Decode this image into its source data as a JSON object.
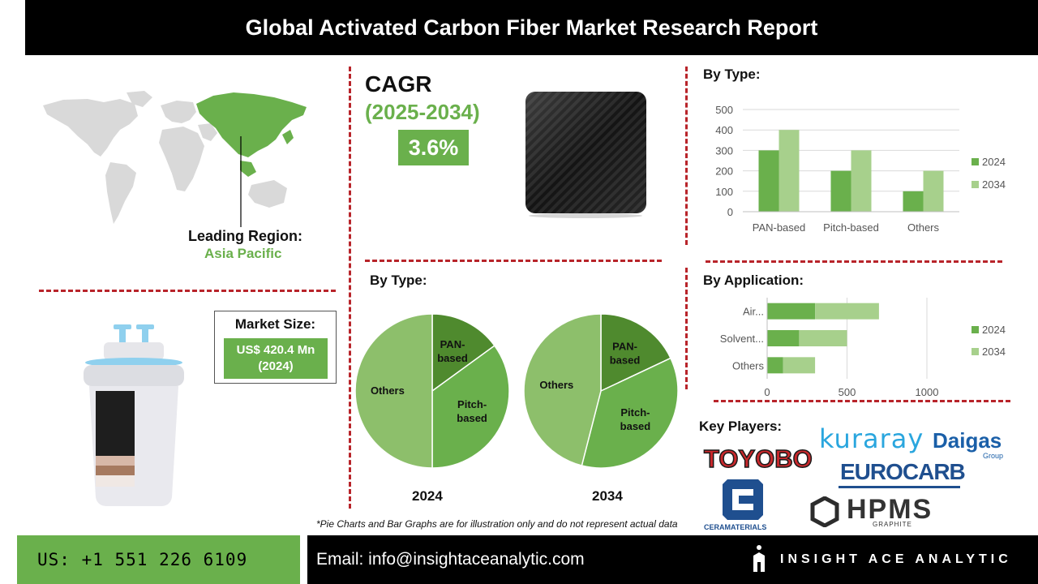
{
  "header": {
    "title": "Global Activated Carbon Fiber Market Research Report"
  },
  "region": {
    "label": "Leading Region:",
    "value": "Asia Pacific"
  },
  "cagr": {
    "title": "CAGR",
    "period": "(2025-2034)",
    "value": "3.6%"
  },
  "market_size": {
    "label": "Market Size:",
    "value_line1": "US$ 420.4 Mn",
    "value_line2": "(2024)"
  },
  "pies": {
    "title": "By Type:",
    "year_2024": "2024",
    "year_2034": "2034"
  },
  "bar_type": {
    "title": "By Type:"
  },
  "bar_app": {
    "title": "By Application:"
  },
  "key_players": {
    "title": "Key Players:",
    "logos": [
      "TOYOBO",
      "kuraray",
      "Daigas",
      "Group",
      "EUROCARB",
      "CERAMATERIALS",
      "HPMS",
      "GRAPHITE"
    ]
  },
  "disclaimer": "*Pie Charts and Bar Graphs are for illustration only and do not represent actual data",
  "footer": {
    "phone": "US: +1 551 226 6109",
    "email": "Email: info@insightaceanalytic.com",
    "brand": "INSIGHT ACE ANALYTIC"
  },
  "colors": {
    "dark_green": "#4f8a2e",
    "mid_green": "#6ab04c",
    "light_green": "#a7d08c",
    "pie_light": "#8dbf6b",
    "red_dash": "#b8242a"
  },
  "chart_data": [
    {
      "type": "pie",
      "title": "2024",
      "categories": [
        "PAN-based",
        "Pitch-based",
        "Others"
      ],
      "values": [
        15,
        35,
        50
      ]
    },
    {
      "type": "pie",
      "title": "2034",
      "categories": [
        "PAN-based",
        "Pitch-based",
        "Others"
      ],
      "values": [
        18,
        36,
        46
      ]
    },
    {
      "type": "bar",
      "title": "By Type:",
      "categories": [
        "PAN-based",
        "Pitch-based",
        "Others"
      ],
      "series": [
        {
          "name": "2024",
          "values": [
            300,
            200,
            100
          ]
        },
        {
          "name": "2034",
          "values": [
            400,
            300,
            200
          ]
        }
      ],
      "ylim": [
        0,
        500
      ],
      "yticks": [
        0,
        100,
        200,
        300,
        400,
        500
      ],
      "grid": true,
      "legend": "right"
    },
    {
      "type": "bar",
      "orientation": "horizontal",
      "stacked": true,
      "title": "By Application:",
      "categories": [
        "Air...",
        "Solvent...",
        "Others"
      ],
      "series": [
        {
          "name": "2024",
          "values": [
            300,
            200,
            100
          ]
        },
        {
          "name": "2034",
          "values": [
            400,
            300,
            200
          ]
        }
      ],
      "xlim": [
        0,
        1000
      ],
      "xticks": [
        0,
        500,
        1000
      ],
      "grid": true,
      "legend": "right"
    }
  ]
}
